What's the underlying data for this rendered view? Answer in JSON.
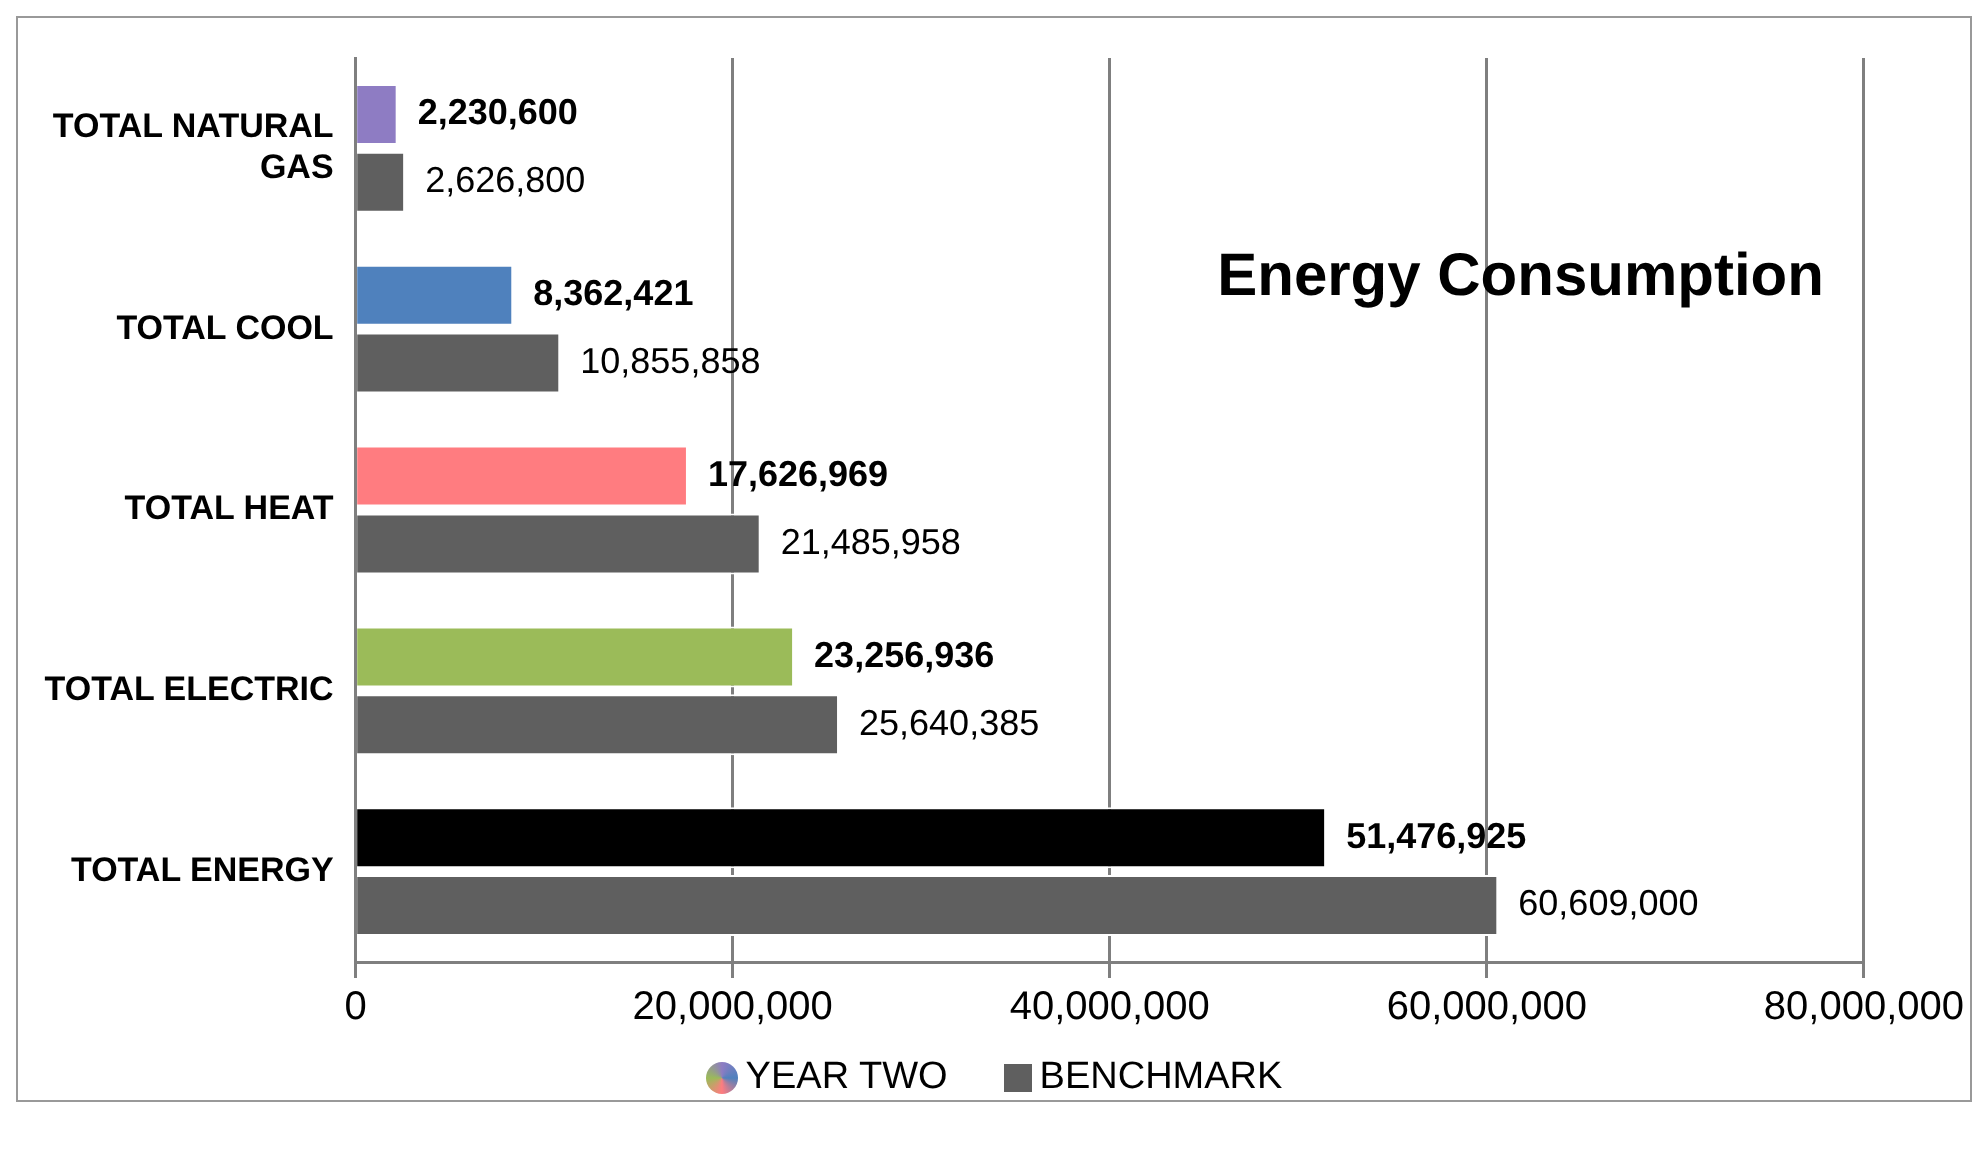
{
  "chart_data": {
    "type": "bar",
    "orientation": "horizontal",
    "title": "Energy Consumption",
    "categories": [
      "TOTAL NATURAL GAS",
      "TOTAL COOL",
      "TOTAL HEAT",
      "TOTAL ELECTRIC",
      "TOTAL ENERGY"
    ],
    "series": [
      {
        "name": "YEAR TWO",
        "colors": [
          "#8e7cc3",
          "#4f81bd",
          "#ff7c80",
          "#9bbb59",
          "#000000"
        ],
        "values": [
          2230600,
          8362421,
          17626969,
          23256936,
          51476925
        ],
        "value_labels": [
          "2,230,600",
          "8,362,421",
          "17,626,969",
          "23,256,936",
          "51,476,925"
        ]
      },
      {
        "name": "BENCHMARK",
        "color": "#5f5f5f",
        "values": [
          2626800,
          10855858,
          21485958,
          25640385,
          60609000
        ],
        "value_labels": [
          "2,626,800",
          "10,855,858",
          "21,485,958",
          "25,640,385",
          "60,609,000"
        ]
      }
    ],
    "xlim": [
      0,
      80000000
    ],
    "xticks": [
      0,
      {
        "value": 20000000,
        "label": "20,000,000"
      },
      {
        "value": 40000000,
        "label": "40,000,000"
      },
      {
        "value": 60000000,
        "label": "60,000,000"
      },
      {
        "value": 80000000,
        "label": "80,000,000"
      }
    ],
    "grid": "x",
    "legend": "bottom"
  }
}
